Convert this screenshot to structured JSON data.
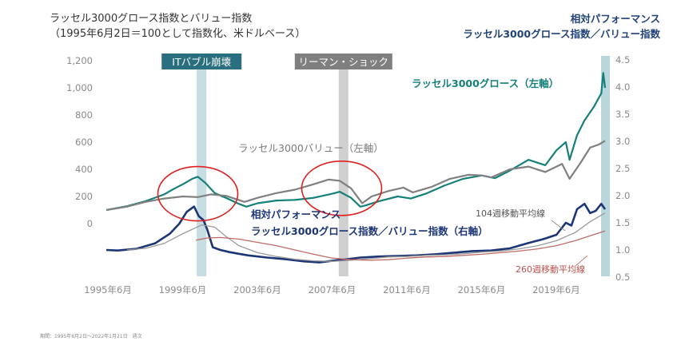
{
  "title_lines": [
    "ラッセル3000グロース指数とバリュー指数",
    "（1995年6月2日＝100として指数化、米ドルベース）"
  ],
  "right_title_lines": [
    "相対パフォーマンス",
    "ラッセル3000グロース指数／バリュー指数"
  ],
  "footnote": "期間：1995年6月2日〜2022年1月21日　週次",
  "chart_data": {
    "type": "line",
    "title": "ラッセル3000グロース指数とバリュー指数",
    "subtitle": "（1995年6月2日＝100として指数化、米ドルベース）",
    "x_ticks": [
      "1995年6月",
      "1999年6月",
      "2003年6月",
      "2007年6月",
      "2011年6月",
      "2015年6月",
      "2019年6月"
    ],
    "x_range": [
      1995.4,
      2022.1
    ],
    "y_left": {
      "ticks": [
        "1,200",
        "1,000",
        "800",
        "600",
        "400",
        "200",
        "0"
      ],
      "ylim": [
        0,
        1200
      ]
    },
    "y_right": {
      "ticks": [
        "4.5",
        "4.0",
        "3.5",
        "3.0",
        "2.5",
        "2.0",
        "1.5",
        "1.0",
        "0.5"
      ],
      "ylim": [
        0.5,
        4.5
      ]
    },
    "events": [
      {
        "label": "ITバブル崩壊",
        "center": 2000.5,
        "color": "#2a6f80",
        "band": "#c5dde3"
      },
      {
        "label": "リーマン・ショック",
        "center": 2008.1,
        "color": "#7f7f7f",
        "band": "#d0d0d0"
      }
    ],
    "right_band_color": "#b9d6dd",
    "highlight_circles": [
      {
        "center_x": 2000.3,
        "center_y": 220
      },
      {
        "center_x": 2008.0,
        "center_y": 260
      }
    ],
    "annotations": [
      {
        "id": "growth",
        "text": "ラッセル3000グロース（左軸）"
      },
      {
        "id": "value",
        "text": "ラッセル3000バリュー（左軸）"
      },
      {
        "id": "rel1",
        "text": "相対パフォーマンス"
      },
      {
        "id": "rel2",
        "text": "ラッセル3000グロース指数／バリュー指数（右軸）"
      },
      {
        "id": "ma104",
        "text": "104週移動平均線"
      },
      {
        "id": "ma260",
        "text": "260週移動平均線"
      }
    ],
    "series": [
      {
        "name": "ラッセル3000グロース（左軸）",
        "axis": "left",
        "color": "#15807a",
        "points": [
          [
            1995.4,
            100
          ],
          [
            1996.5,
            128
          ],
          [
            1997.5,
            165
          ],
          [
            1998.5,
            215
          ],
          [
            1999.0,
            255
          ],
          [
            1999.5,
            290
          ],
          [
            2000.0,
            330
          ],
          [
            2000.3,
            345
          ],
          [
            2000.7,
            300
          ],
          [
            2001.2,
            225
          ],
          [
            2001.8,
            190
          ],
          [
            2002.5,
            145
          ],
          [
            2002.9,
            125
          ],
          [
            2003.5,
            150
          ],
          [
            2004.5,
            170
          ],
          [
            2005.5,
            175
          ],
          [
            2006.5,
            190
          ],
          [
            2007.5,
            220
          ],
          [
            2007.9,
            235
          ],
          [
            2008.5,
            190
          ],
          [
            2009.0,
            125
          ],
          [
            2009.3,
            135
          ],
          [
            2010.0,
            165
          ],
          [
            2011.0,
            200
          ],
          [
            2011.7,
            185
          ],
          [
            2012.5,
            220
          ],
          [
            2013.5,
            280
          ],
          [
            2014.5,
            330
          ],
          [
            2015.5,
            355
          ],
          [
            2016.2,
            335
          ],
          [
            2017.0,
            390
          ],
          [
            2018.0,
            470
          ],
          [
            2018.9,
            430
          ],
          [
            2019.5,
            540
          ],
          [
            2020.0,
            600
          ],
          [
            2020.2,
            470
          ],
          [
            2020.6,
            650
          ],
          [
            2021.0,
            760
          ],
          [
            2021.5,
            860
          ],
          [
            2021.9,
            960
          ],
          [
            2022.0,
            1110
          ],
          [
            2022.1,
            1000
          ]
        ]
      },
      {
        "name": "ラッセル3000バリュー（左軸）",
        "axis": "left",
        "color": "#808080",
        "points": [
          [
            1995.4,
            100
          ],
          [
            1996.5,
            125
          ],
          [
            1997.5,
            160
          ],
          [
            1998.5,
            185
          ],
          [
            1999.5,
            200
          ],
          [
            2000.3,
            195
          ],
          [
            2001.0,
            215
          ],
          [
            2001.8,
            205
          ],
          [
            2002.8,
            160
          ],
          [
            2003.5,
            190
          ],
          [
            2004.5,
            225
          ],
          [
            2005.5,
            250
          ],
          [
            2006.5,
            290
          ],
          [
            2007.3,
            325
          ],
          [
            2007.9,
            315
          ],
          [
            2008.5,
            260
          ],
          [
            2009.1,
            150
          ],
          [
            2009.6,
            200
          ],
          [
            2010.5,
            240
          ],
          [
            2011.3,
            265
          ],
          [
            2011.8,
            230
          ],
          [
            2012.8,
            270
          ],
          [
            2013.8,
            330
          ],
          [
            2014.8,
            360
          ],
          [
            2015.5,
            355
          ],
          [
            2016.0,
            340
          ],
          [
            2017.0,
            400
          ],
          [
            2018.0,
            420
          ],
          [
            2018.9,
            380
          ],
          [
            2019.8,
            440
          ],
          [
            2020.2,
            330
          ],
          [
            2020.8,
            450
          ],
          [
            2021.3,
            560
          ],
          [
            2021.8,
            585
          ],
          [
            2022.1,
            610
          ]
        ]
      },
      {
        "name": "相対パフォーマンス",
        "axis": "right",
        "color": "#1c3577",
        "points": [
          [
            1995.4,
            1.0
          ],
          [
            1996.0,
            0.99
          ],
          [
            1997.0,
            1.02
          ],
          [
            1998.0,
            1.12
          ],
          [
            1998.8,
            1.3
          ],
          [
            1999.3,
            1.48
          ],
          [
            1999.7,
            1.7
          ],
          [
            2000.1,
            1.8
          ],
          [
            2000.35,
            1.62
          ],
          [
            2000.6,
            1.55
          ],
          [
            2000.8,
            1.38
          ],
          [
            2001.1,
            1.05
          ],
          [
            2001.5,
            1.0
          ],
          [
            2002.0,
            0.96
          ],
          [
            2002.5,
            0.93
          ],
          [
            2003.0,
            0.9
          ],
          [
            2004.0,
            0.86
          ],
          [
            2005.0,
            0.83
          ],
          [
            2006.0,
            0.79
          ],
          [
            2006.8,
            0.77
          ],
          [
            2007.5,
            0.8
          ],
          [
            2008.3,
            0.83
          ],
          [
            2009.0,
            0.86
          ],
          [
            2010.0,
            0.88
          ],
          [
            2011.0,
            0.89
          ],
          [
            2012.0,
            0.9
          ],
          [
            2013.0,
            0.92
          ],
          [
            2014.0,
            0.95
          ],
          [
            2015.0,
            0.98
          ],
          [
            2016.0,
            0.99
          ],
          [
            2017.0,
            1.03
          ],
          [
            2018.0,
            1.13
          ],
          [
            2018.8,
            1.2
          ],
          [
            2019.5,
            1.28
          ],
          [
            2020.0,
            1.5
          ],
          [
            2020.3,
            1.45
          ],
          [
            2020.6,
            1.75
          ],
          [
            2021.0,
            1.85
          ],
          [
            2021.3,
            1.68
          ],
          [
            2021.6,
            1.72
          ],
          [
            2021.9,
            1.85
          ],
          [
            2022.1,
            1.75
          ]
        ]
      },
      {
        "name": "104週移動平均線",
        "axis": "right",
        "color": "#9a9a9a",
        "points": [
          [
            1996.5,
            1.0
          ],
          [
            1997.5,
            1.03
          ],
          [
            1998.5,
            1.12
          ],
          [
            1999.5,
            1.3
          ],
          [
            2000.5,
            1.46
          ],
          [
            2001.2,
            1.42
          ],
          [
            2001.8,
            1.25
          ],
          [
            2002.5,
            1.08
          ],
          [
            2003.5,
            0.95
          ],
          [
            2004.5,
            0.88
          ],
          [
            2005.5,
            0.83
          ],
          [
            2006.5,
            0.8
          ],
          [
            2007.5,
            0.79
          ],
          [
            2008.5,
            0.81
          ],
          [
            2009.5,
            0.84
          ],
          [
            2010.5,
            0.87
          ],
          [
            2011.5,
            0.88
          ],
          [
            2012.5,
            0.9
          ],
          [
            2013.5,
            0.91
          ],
          [
            2014.5,
            0.93
          ],
          [
            2015.5,
            0.96
          ],
          [
            2016.5,
            0.98
          ],
          [
            2017.5,
            1.02
          ],
          [
            2018.5,
            1.08
          ],
          [
            2019.5,
            1.17
          ],
          [
            2020.5,
            1.32
          ],
          [
            2021.3,
            1.52
          ],
          [
            2022.1,
            1.68
          ]
        ]
      },
      {
        "name": "260週移動平均線",
        "axis": "right",
        "color": "#c06b66",
        "points": [
          [
            2000.2,
            1.18
          ],
          [
            2000.8,
            1.22
          ],
          [
            2001.5,
            1.23
          ],
          [
            2002.5,
            1.2
          ],
          [
            2003.5,
            1.14
          ],
          [
            2004.5,
            1.08
          ],
          [
            2005.5,
            1.0
          ],
          [
            2006.5,
            0.92
          ],
          [
            2007.5,
            0.85
          ],
          [
            2008.5,
            0.82
          ],
          [
            2009.5,
            0.81
          ],
          [
            2010.5,
            0.82
          ],
          [
            2011.5,
            0.85
          ],
          [
            2012.5,
            0.87
          ],
          [
            2013.5,
            0.88
          ],
          [
            2014.5,
            0.9
          ],
          [
            2015.5,
            0.92
          ],
          [
            2016.5,
            0.95
          ],
          [
            2017.5,
            0.98
          ],
          [
            2018.5,
            1.02
          ],
          [
            2019.5,
            1.08
          ],
          [
            2020.5,
            1.17
          ],
          [
            2021.3,
            1.26
          ],
          [
            2022.1,
            1.35
          ]
        ]
      }
    ]
  }
}
